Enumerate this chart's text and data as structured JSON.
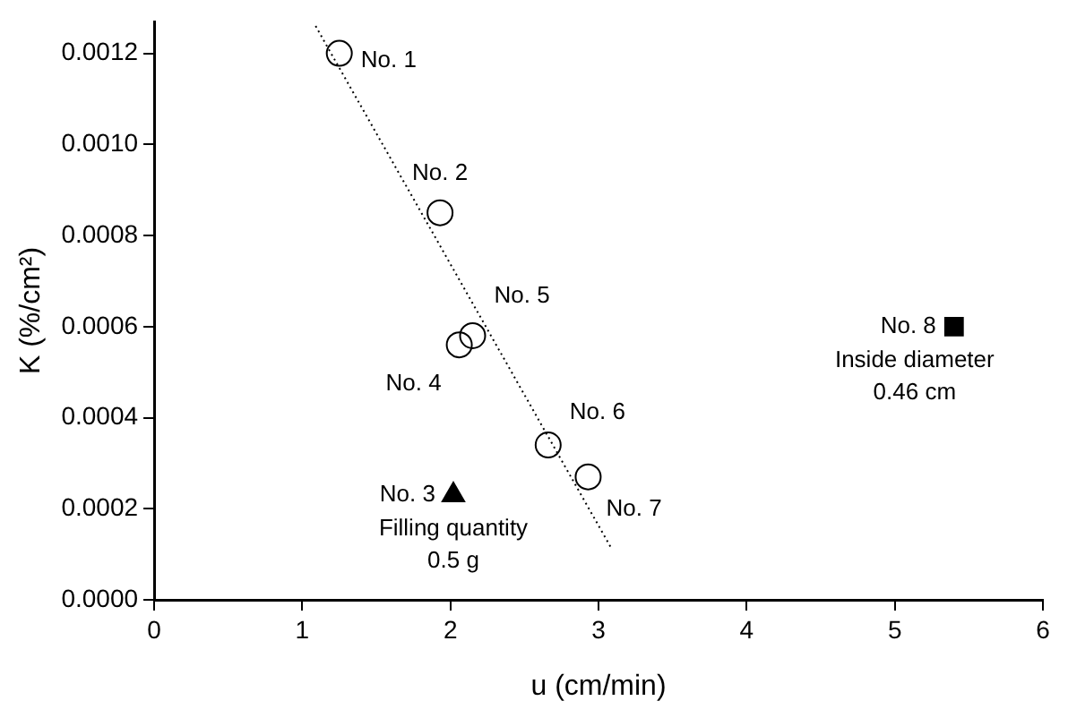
{
  "chart_data": {
    "type": "scatter",
    "xlabel": "u (cm/min)",
    "ylabel": "K (%/cm²)",
    "xlim": [
      0,
      6
    ],
    "ylim": [
      0,
      0.00127
    ],
    "xticks": [
      0,
      1,
      2,
      3,
      4,
      5,
      6
    ],
    "yticks": [
      {
        "value": 0,
        "label": "0.0000"
      },
      {
        "value": 0.0002,
        "label": "0.0002"
      },
      {
        "value": 0.0004,
        "label": "0.0004"
      },
      {
        "value": 0.0006,
        "label": "0.0006"
      },
      {
        "value": 0.0008,
        "label": "0.0008"
      },
      {
        "value": 0.001,
        "label": "0.0010"
      },
      {
        "value": 0.0012,
        "label": "0.0012"
      }
    ],
    "grid": false,
    "legend": false,
    "series": [
      {
        "marker": "circle",
        "color": "#000000",
        "x": [
          1.25,
          1.93,
          2.06,
          2.15,
          2.66,
          2.93
        ],
        "values": [
          0.0012,
          0.00085,
          0.00056,
          0.00058,
          0.00034,
          0.00027
        ]
      },
      {
        "marker": "triangle",
        "color": "#000000",
        "x": [
          2.02
        ],
        "values": [
          0.00023
        ]
      },
      {
        "marker": "square",
        "color": "#000000",
        "x": [
          5.4
        ],
        "values": [
          0.0006
        ]
      },
      {
        "type": "line",
        "line_style": "dotted",
        "marker": "none",
        "color": "#000000",
        "x": [
          1.09,
          3.08
        ],
        "values": [
          0.00126,
          0.000117
        ]
      }
    ],
    "annotations": [
      {
        "text": "No. 1",
        "x": 1.25,
        "y": 0.0012
      },
      {
        "text": "No. 2",
        "x": 1.93,
        "y": 0.00085
      },
      {
        "text": "No. 5",
        "x": 2.15,
        "y": 0.00058
      },
      {
        "text": "No. 4",
        "x": 2.06,
        "y": 0.00056
      },
      {
        "text": "No. 6",
        "x": 2.66,
        "y": 0.00034
      },
      {
        "text": "No. 7",
        "x": 2.93,
        "y": 0.00027
      },
      {
        "text": "No. 3",
        "x": 2.02,
        "y": 0.00023
      },
      {
        "text": "Filling quantity",
        "x": 2.02,
        "y": 0.00023
      },
      {
        "text": "0.5 g",
        "x": 2.02,
        "y": 0.00023
      },
      {
        "text": "No. 8",
        "x": 5.4,
        "y": 0.0006
      },
      {
        "text": "Inside diameter",
        "x": 5.4,
        "y": 0.0006
      },
      {
        "text": "0.46 cm",
        "x": 5.4,
        "y": 0.0006
      }
    ]
  }
}
